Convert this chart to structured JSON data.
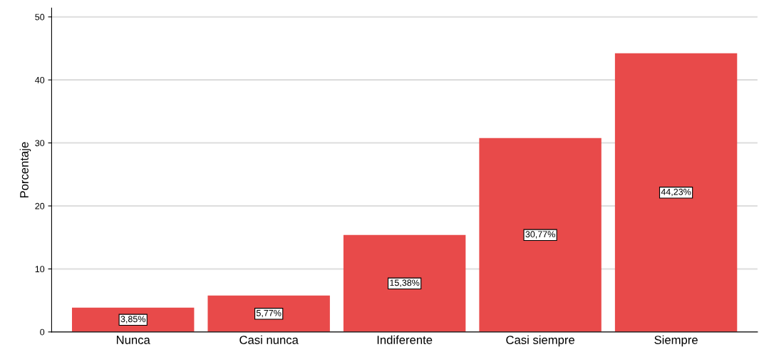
{
  "chart_data": {
    "type": "bar",
    "ylabel": "Porcentaje",
    "categories": [
      "Nunca",
      "Casi nunca",
      "Indiferente",
      "Casi siempre",
      "Siempre"
    ],
    "values": [
      3.85,
      5.77,
      15.38,
      30.77,
      44.23
    ],
    "value_labels": [
      "3,85%",
      "5,77%",
      "15,38%",
      "30,77%",
      "44,23%"
    ],
    "color": "#e84a4a",
    "ylim": [
      0,
      51.4
    ],
    "yticks": [
      0,
      10,
      20,
      30,
      40,
      50
    ],
    "grid": "y",
    "legend": false
  }
}
